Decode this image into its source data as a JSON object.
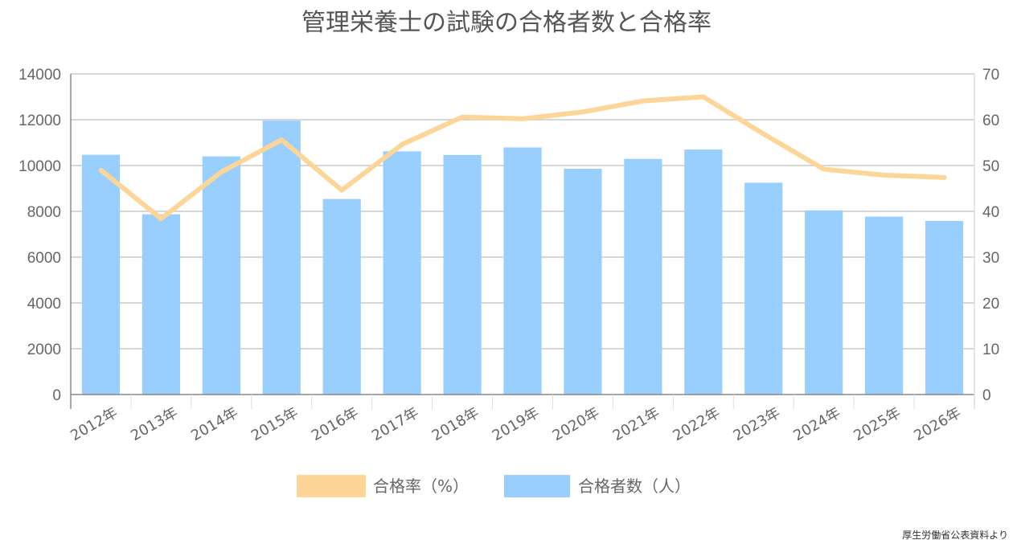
{
  "chart_data": {
    "type": "bar",
    "title": "管理栄養士の試験の合格者数と合格率",
    "categories": [
      "2012年",
      "2013年",
      "2014年",
      "2015年",
      "2016年",
      "2017年",
      "2018年",
      "2019年",
      "2020年",
      "2021年",
      "2022年",
      "2023年",
      "2024年",
      "2025年",
      "2026年"
    ],
    "series": [
      {
        "name": "合格者数（人）",
        "type": "bar",
        "axis": "left",
        "color": "#99cfff",
        "values": [
          10470,
          7870,
          10400,
          11960,
          8540,
          10620,
          10460,
          10790,
          9860,
          10290,
          10700,
          9250,
          8040,
          7770,
          7580
        ]
      },
      {
        "name": "合格率（%）",
        "type": "line",
        "axis": "right",
        "color": "#fcd597",
        "values": [
          49.0,
          38.4,
          48.6,
          55.6,
          44.6,
          54.6,
          60.6,
          60.2,
          61.7,
          64.1,
          65.0,
          56.9,
          49.2,
          47.9,
          47.4
        ]
      }
    ],
    "y_left": {
      "min": 0,
      "max": 14000,
      "ticks": [
        0,
        2000,
        4000,
        6000,
        8000,
        10000,
        12000,
        14000
      ]
    },
    "y_right": {
      "min": 0,
      "max": 70,
      "ticks": [
        0,
        10,
        20,
        30,
        40,
        50,
        60,
        70
      ]
    },
    "grid": true,
    "legend_position": "bottom",
    "source_note": "厚生労働省公表資料より"
  }
}
